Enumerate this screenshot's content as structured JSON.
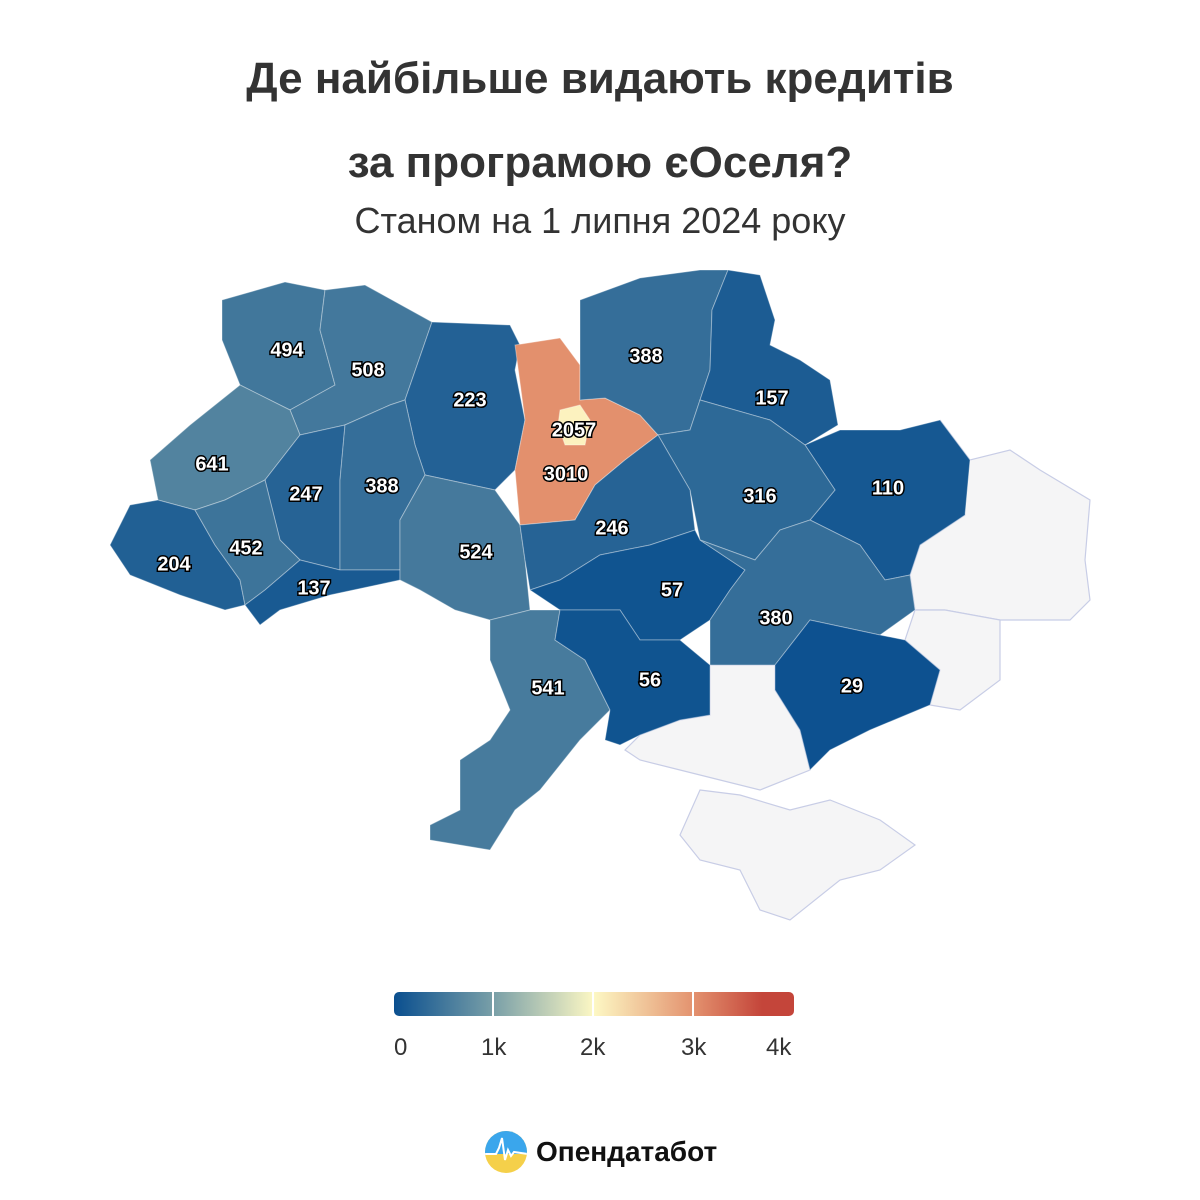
{
  "title_line1": "Де найбільше видають кредитів",
  "title_line2": "за програмою єОселя?",
  "subtitle": "Станом на 1 липня 2024 року",
  "chart_data": {
    "type": "choropleth",
    "values": {
      "volyn": 494,
      "rivne": 508,
      "zhytomyr": 223,
      "kyiv_oblast": 3010,
      "kyiv_city": 2057,
      "chernihiv": 388,
      "sumy": 157,
      "kharkiv": 110,
      "poltava": 316,
      "lviv": 641,
      "ternopil": 247,
      "khmelnytskyi": 388,
      "zakarpattia": 204,
      "ivano_frankivsk": 452,
      "chernivtsi": 137,
      "vinnytsia": 524,
      "cherkasy": 246,
      "kirovohrad": 57,
      "dnipropetrovsk": 380,
      "odesa": 541,
      "mykolaiv": 56,
      "zaporizhzhia": 29
    },
    "no_data_color": "#f5f5f6",
    "color_scale": {
      "min": 0,
      "max": 4000,
      "stops": [
        "#0a4f8f",
        "#7aa0a8",
        "#fdf8c4",
        "#e3916e",
        "#c4453a"
      ]
    },
    "legend_ticks": [
      "0",
      "1k",
      "2k",
      "3k",
      "4k"
    ]
  },
  "brand": "Опендатабот"
}
